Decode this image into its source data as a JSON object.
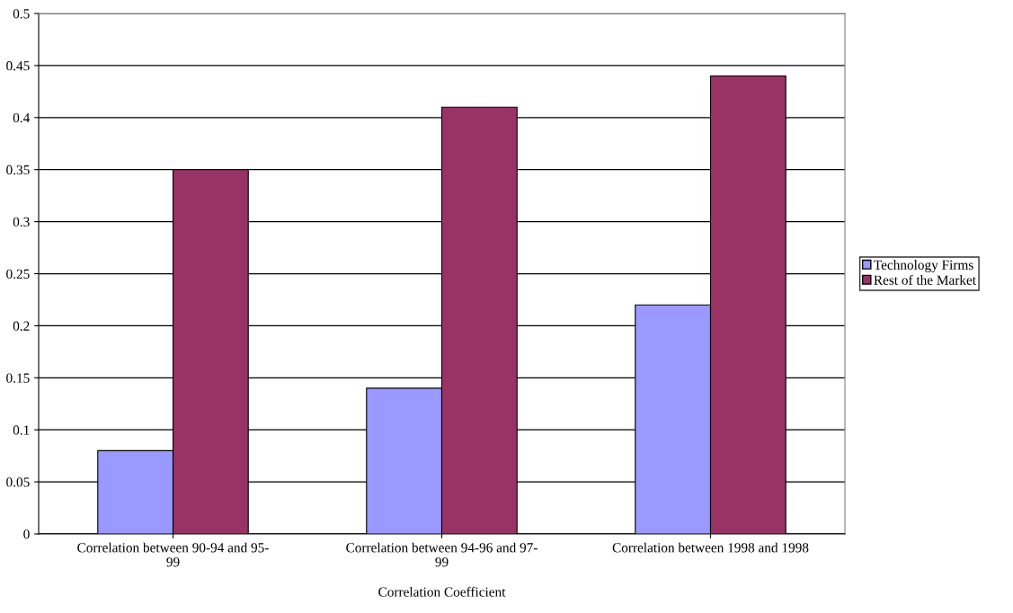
{
  "chart_data": {
    "type": "bar",
    "categories": [
      "Correlation between 90-94 and 95-\n99",
      "Correlation between 94-96 and 97-\n99",
      "Correlation between 1998 and 1998"
    ],
    "series": [
      {
        "name": "Technology Firms",
        "color": "#9999ff",
        "values": [
          0.08,
          0.14,
          0.22
        ]
      },
      {
        "name": "Rest of the Market",
        "color": "#993366",
        "values": [
          0.35,
          0.41,
          0.44
        ]
      }
    ],
    "xlabel": "Correlation Coefficient",
    "ylim": [
      0,
      0.5
    ],
    "yticks": [
      0,
      0.05,
      0.1,
      0.15,
      0.2,
      0.25,
      0.3,
      0.35,
      0.4,
      0.45,
      0.5
    ],
    "grid": "y",
    "legend": "right"
  }
}
